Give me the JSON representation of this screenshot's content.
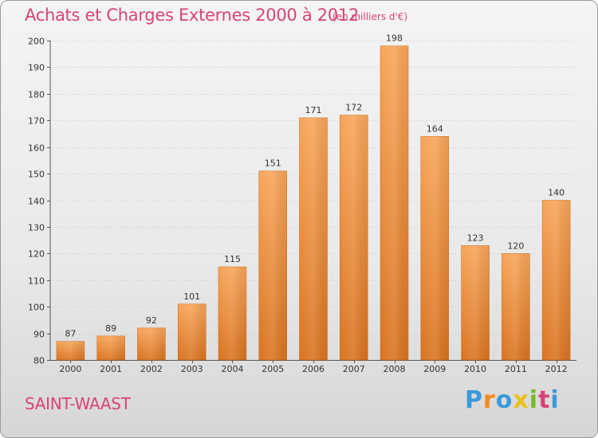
{
  "chart_data": {
    "type": "bar",
    "title": "Achats et Charges Externes 2000 à 2012",
    "subtitle": "(en milliers d'€)",
    "xlabel": "",
    "ylabel": "",
    "ylim": [
      80,
      200
    ],
    "yticks": [
      80,
      90,
      100,
      110,
      120,
      130,
      140,
      150,
      160,
      170,
      180,
      190,
      200
    ],
    "grid": true,
    "categories": [
      "2000",
      "2001",
      "2002",
      "2003",
      "2004",
      "2005",
      "2006",
      "2007",
      "2008",
      "2009",
      "2010",
      "2011",
      "2012"
    ],
    "values": [
      87,
      89,
      92,
      101,
      115,
      151,
      171,
      172,
      198,
      164,
      123,
      120,
      140
    ],
    "bar_color_top": "#f7a55a",
    "bar_color_bottom": "#d9731f"
  },
  "footer": {
    "town": "SAINT-WAAST",
    "logo_text": "Proxiti",
    "logo_colors": [
      "#3a9bd9",
      "#f08a1c",
      "#3a9bd9",
      "#e8c21a",
      "#7ab828",
      "#d9437a",
      "#3a9bd9"
    ]
  }
}
